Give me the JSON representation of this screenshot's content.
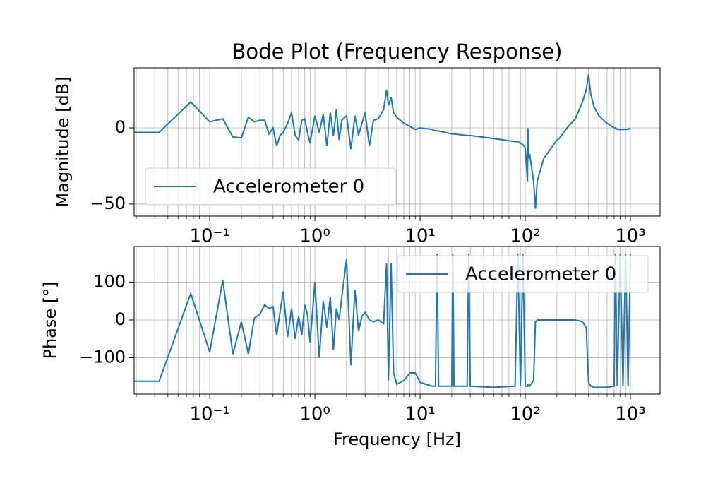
{
  "chart_data": [
    {
      "type": "line",
      "title": "Bode Plot (Frequency Response)",
      "ylabel": "Magnitude [dB]",
      "xscale": "log",
      "grid": true,
      "minor_grid": true,
      "legend": "lower left",
      "xlim": [
        0.0191,
        1914
      ],
      "xticks": [
        {
          "value": 0.1,
          "label": "10⁻¹"
        },
        {
          "value": 1,
          "label": "10⁰"
        },
        {
          "value": 10,
          "label": "10¹"
        },
        {
          "value": 100,
          "label": "10²"
        },
        {
          "value": 1000,
          "label": "10³"
        }
      ],
      "ylim": [
        -57.9,
        39.4
      ],
      "yticks": [
        {
          "value": -50,
          "label": "−50"
        },
        0
      ],
      "x": [
        0.0191,
        0.033,
        0.066,
        0.1,
        0.133,
        0.166,
        0.2,
        0.233,
        0.266,
        0.3,
        0.333,
        0.366,
        0.4,
        0.433,
        0.466,
        0.5,
        0.55,
        0.6,
        0.65,
        0.7,
        0.75,
        0.8,
        0.85,
        0.9,
        1.0,
        1.1,
        1.2,
        1.3,
        1.4,
        1.5,
        1.6,
        1.7,
        1.8,
        2.0,
        2.2,
        2.4,
        2.6,
        2.8,
        3.0,
        3.3,
        3.6,
        4.0,
        4.5,
        4.8,
        5.0,
        5.3,
        5.6,
        6,
        7,
        8,
        9,
        10,
        13,
        14,
        14.5,
        15,
        20,
        20.5,
        21,
        28,
        29,
        30,
        50,
        80,
        85,
        90,
        95,
        100,
        105,
        106,
        107,
        110,
        120,
        125,
        130,
        150,
        200,
        210,
        250,
        300,
        350,
        380,
        400,
        420,
        450,
        500,
        600,
        700,
        720,
        750,
        800,
        850,
        900,
        950,
        1000
      ],
      "series": [
        {
          "name": "Accelerometer 0",
          "color": "#1f77b4",
          "values": [
            -3,
            -3,
            17,
            4,
            6,
            -6,
            -6.5,
            7,
            4,
            5,
            5,
            -4,
            0,
            -12,
            -5,
            -3,
            3,
            10,
            -5,
            -8,
            5,
            6,
            -3,
            -10,
            8,
            -3,
            9,
            -12,
            10,
            -5,
            12,
            -8,
            5,
            8,
            -14,
            8,
            -5,
            3,
            10,
            -12,
            5,
            6,
            12,
            25,
            15,
            20,
            10,
            7,
            3,
            1,
            -1,
            0,
            -1,
            -2,
            -2,
            -2,
            -4,
            -4,
            -4,
            -5,
            -5,
            -5,
            -7,
            -9,
            -9,
            -10,
            -11,
            -13,
            -35,
            0,
            -20,
            -17,
            -35,
            -53,
            -35,
            -20,
            -8,
            -7,
            0,
            6,
            17,
            25,
            35,
            22,
            14,
            8,
            3,
            0,
            0,
            -1,
            -1,
            -1,
            -1,
            -1,
            0
          ]
        }
      ]
    },
    {
      "type": "line",
      "xlabel": "Frequency [Hz]",
      "ylabel": "Phase [°]",
      "xscale": "log",
      "grid": true,
      "minor_grid": true,
      "legend": "upper right",
      "xlim": [
        0.0191,
        1914
      ],
      "xticks": [
        {
          "value": 0.1,
          "label": "10⁻¹"
        },
        {
          "value": 1,
          "label": "10⁰"
        },
        {
          "value": 10,
          "label": "10¹"
        },
        {
          "value": 100,
          "label": "10²"
        },
        {
          "value": 1000,
          "label": "10³"
        }
      ],
      "ylim": [
        -196,
        194
      ],
      "yticks": [
        {
          "value": -100,
          "label": "−100"
        },
        0,
        100
      ],
      "x": [
        0.0191,
        0.033,
        0.066,
        0.1,
        0.133,
        0.166,
        0.2,
        0.233,
        0.266,
        0.3,
        0.333,
        0.366,
        0.4,
        0.433,
        0.466,
        0.5,
        0.55,
        0.6,
        0.65,
        0.7,
        0.75,
        0.8,
        0.85,
        0.9,
        1.0,
        1.1,
        1.2,
        1.3,
        1.4,
        1.5,
        1.6,
        1.7,
        1.8,
        2.0,
        2.2,
        2.4,
        2.6,
        2.8,
        3.0,
        3.3,
        3.6,
        4.0,
        4.5,
        4.8,
        5.0,
        5.3,
        5.6,
        6,
        7,
        8,
        9,
        10,
        13,
        14,
        14.5,
        15,
        20,
        20.5,
        21,
        28,
        29,
        30,
        50,
        80,
        85,
        90,
        95,
        100,
        105,
        106,
        107,
        110,
        120,
        125,
        130,
        150,
        200,
        210,
        250,
        300,
        350,
        380,
        400,
        420,
        450,
        500,
        600,
        700,
        720,
        750,
        800,
        850,
        900,
        950,
        1000
      ],
      "series": [
        {
          "name": "Accelerometer 0",
          "color": "#1f77b4",
          "values": [
            -162,
            -162,
            70,
            -85,
            105,
            -90,
            -5,
            -90,
            5,
            15,
            40,
            30,
            35,
            -40,
            20,
            75,
            -45,
            30,
            -50,
            10,
            -40,
            40,
            15,
            -60,
            100,
            -100,
            50,
            -20,
            60,
            -80,
            30,
            0,
            60,
            160,
            -120,
            80,
            -30,
            10,
            20,
            0,
            -5,
            0,
            -10,
            150,
            -160,
            150,
            -140,
            -170,
            -160,
            -140,
            -140,
            -165,
            -175,
            -175,
            175,
            -175,
            -175,
            175,
            -175,
            -175,
            175,
            -175,
            -178,
            -175,
            175,
            -175,
            175,
            -175,
            -175,
            -170,
            -175,
            -175,
            -160,
            -5,
            0,
            0,
            0,
            0,
            0,
            0,
            -5,
            -20,
            -165,
            -175,
            -178,
            -178,
            -178,
            -175,
            175,
            -175,
            175,
            -175,
            175,
            -175,
            175
          ]
        }
      ]
    }
  ]
}
